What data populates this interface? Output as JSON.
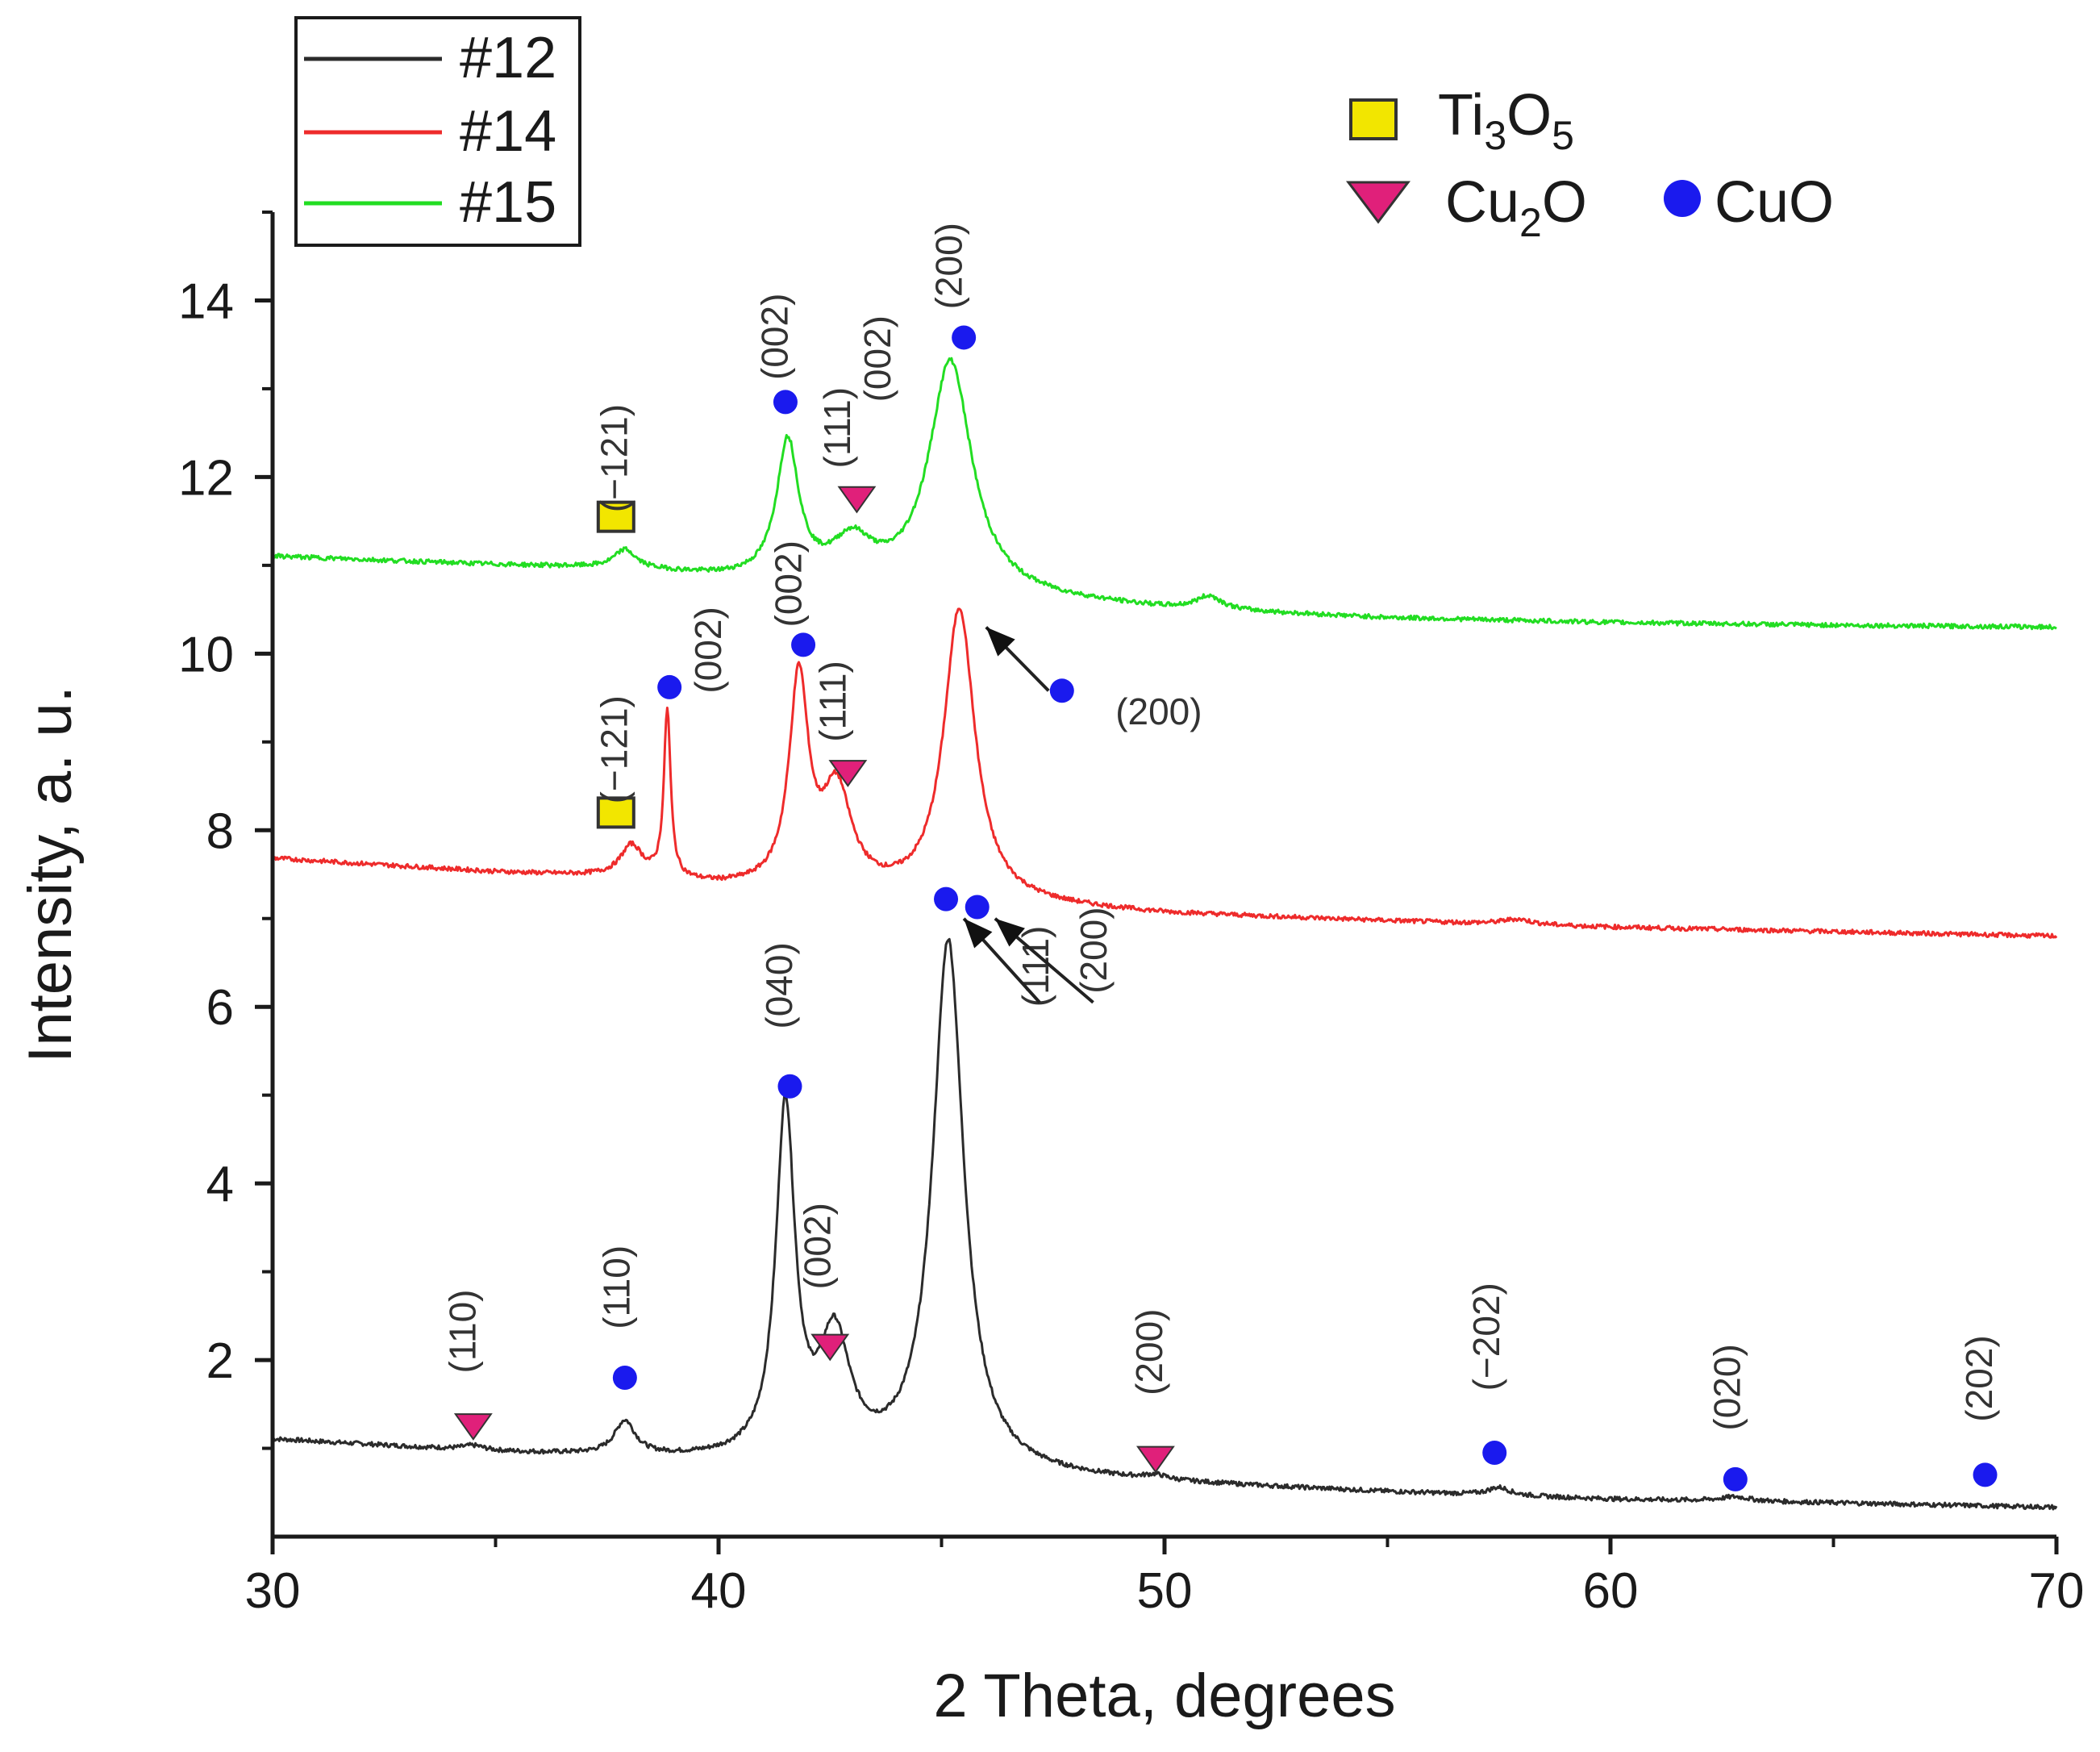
{
  "chart_data": {
    "type": "line",
    "xlabel": "2 Theta, degrees",
    "ylabel": "Intensity, a. u.",
    "xlim": [
      30,
      70
    ],
    "ylim": [
      0,
      15
    ],
    "x_ticks": [
      30,
      40,
      50,
      60,
      70
    ],
    "y_ticks": [
      2,
      4,
      6,
      8,
      10,
      12,
      14
    ],
    "legend": {
      "position": "top-left",
      "entries": [
        {
          "label": "#12",
          "color": "#2b2b2b"
        },
        {
          "label": "#14",
          "color": "#ee2b2b"
        },
        {
          "label": "#15",
          "color": "#22dd22"
        }
      ]
    },
    "phase_legend": [
      {
        "marker": "square",
        "color": "#f2e600",
        "label": "Ti",
        "sub1": "3",
        "mid": "O",
        "sub2": "5"
      },
      {
        "marker": "triangle",
        "color": "#e0207a",
        "label": "Cu",
        "sub1": "2",
        "mid": "O",
        "sub2": ""
      },
      {
        "marker": "circle",
        "color": "#1a1aee",
        "label": "CuO",
        "sub1": "",
        "mid": "",
        "sub2": ""
      }
    ],
    "series": [
      {
        "name": "#12",
        "color": "#2b2b2b",
        "baseline": [
          [
            30,
            1.1
          ],
          [
            35,
            0.95
          ],
          [
            40,
            0.85
          ],
          [
            45,
            0.72
          ],
          [
            50,
            0.6
          ],
          [
            55,
            0.5
          ],
          [
            60,
            0.42
          ],
          [
            65,
            0.38
          ],
          [
            70,
            0.33
          ]
        ],
        "peaks": [
          {
            "x": 34.5,
            "h": 0.05,
            "w": 0.3
          },
          {
            "x": 37.9,
            "h": 0.38,
            "w": 0.28
          },
          {
            "x": 41.5,
            "h": 3.95,
            "w": 0.26
          },
          {
            "x": 42.6,
            "h": 1.35,
            "w": 0.42
          },
          {
            "x": 45.15,
            "h": 6.0,
            "w": 0.42
          },
          {
            "x": 49.8,
            "h": 0.05,
            "w": 0.3
          },
          {
            "x": 57.5,
            "h": 0.09,
            "w": 0.3
          },
          {
            "x": 62.8,
            "h": 0.05,
            "w": 0.4
          }
        ]
      },
      {
        "name": "#14",
        "color": "#ee2b2b",
        "baseline": [
          [
            30,
            7.68
          ],
          [
            35,
            7.52
          ],
          [
            38,
            7.45
          ],
          [
            40,
            7.35
          ],
          [
            45,
            7.2
          ],
          [
            50,
            7.05
          ],
          [
            55,
            6.97
          ],
          [
            60,
            6.9
          ],
          [
            65,
            6.85
          ],
          [
            70,
            6.8
          ]
        ],
        "peaks": [
          {
            "x": 38.05,
            "h": 0.35,
            "w": 0.3
          },
          {
            "x": 38.85,
            "h": 1.9,
            "w": 0.09
          },
          {
            "x": 41.8,
            "h": 2.35,
            "w": 0.26
          },
          {
            "x": 42.65,
            "h": 1.1,
            "w": 0.4
          },
          {
            "x": 45.4,
            "h": 3.3,
            "w": 0.42
          },
          {
            "x": 57.9,
            "h": 0.06,
            "w": 0.4
          }
        ]
      },
      {
        "name": "#15",
        "color": "#22dd22",
        "baseline": [
          [
            30,
            11.1
          ],
          [
            35,
            11.0
          ],
          [
            38,
            10.95
          ],
          [
            40,
            10.85
          ],
          [
            45,
            10.68
          ],
          [
            50,
            10.5
          ],
          [
            55,
            10.4
          ],
          [
            60,
            10.35
          ],
          [
            65,
            10.32
          ],
          [
            70,
            10.3
          ]
        ],
        "peaks": [
          {
            "x": 37.9,
            "h": 0.2,
            "w": 0.28
          },
          {
            "x": 41.55,
            "h": 1.55,
            "w": 0.3
          },
          {
            "x": 43.0,
            "h": 0.45,
            "w": 0.55
          },
          {
            "x": 45.2,
            "h": 2.62,
            "w": 0.58
          },
          {
            "x": 51.0,
            "h": 0.15,
            "w": 0.35
          }
        ]
      }
    ],
    "markers": [
      {
        "type": "square",
        "x": 37.7,
        "y": 11.55
      },
      {
        "type": "circle",
        "x": 41.5,
        "y": 12.85
      },
      {
        "type": "triangle",
        "x": 43.1,
        "y": 11.75
      },
      {
        "type": "circle",
        "x": 45.5,
        "y": 13.58
      },
      {
        "type": "square",
        "x": 37.7,
        "y": 8.2
      },
      {
        "type": "circle",
        "x": 38.9,
        "y": 9.62
      },
      {
        "type": "circle",
        "x": 41.9,
        "y": 10.1
      },
      {
        "type": "triangle",
        "x": 42.9,
        "y": 8.65
      },
      {
        "type": "circle",
        "x": 47.7,
        "y": 9.58
      },
      {
        "type": "circle",
        "x": 45.1,
        "y": 7.22
      },
      {
        "type": "circle",
        "x": 45.8,
        "y": 7.13
      },
      {
        "type": "triangle",
        "x": 34.5,
        "y": 1.25
      },
      {
        "type": "circle",
        "x": 37.9,
        "y": 1.8
      },
      {
        "type": "circle",
        "x": 41.6,
        "y": 5.1
      },
      {
        "type": "triangle",
        "x": 42.5,
        "y": 2.15
      },
      {
        "type": "triangle",
        "x": 49.8,
        "y": 0.88
      },
      {
        "type": "circle",
        "x": 57.4,
        "y": 0.95
      },
      {
        "type": "circle",
        "x": 62.8,
        "y": 0.65
      },
      {
        "type": "circle",
        "x": 68.4,
        "y": 0.7
      }
    ],
    "annotations": [
      {
        "text": "(−121)",
        "x": 37.95,
        "y": 11.6,
        "rotate": -90
      },
      {
        "text": "(002)",
        "x": 41.55,
        "y": 13.1,
        "rotate": -90
      },
      {
        "text": "(111)",
        "x": 42.95,
        "y": 12.1,
        "rotate": -90
      },
      {
        "text": "(002)",
        "x": 43.85,
        "y": 12.85,
        "rotate": -90
      },
      {
        "text": "(200)",
        "x": 45.45,
        "y": 13.9,
        "rotate": -90
      },
      {
        "text": "(−121)",
        "x": 37.95,
        "y": 8.3,
        "rotate": -90
      },
      {
        "text": "(002)",
        "x": 40.05,
        "y": 9.55,
        "rotate": -90
      },
      {
        "text": "(002)",
        "x": 41.85,
        "y": 10.3,
        "rotate": -90
      },
      {
        "text": "(111)",
        "x": 42.85,
        "y": 9.0,
        "rotate": -90
      },
      {
        "text": "(200)",
        "x": 48.9,
        "y": 9.2,
        "rotate": 0
      },
      {
        "text": "(111)",
        "x": 47.4,
        "y": 6.0,
        "rotate": -90
      },
      {
        "text": "(200)",
        "x": 48.7,
        "y": 6.15,
        "rotate": -90
      },
      {
        "text": "(110)",
        "x": 34.55,
        "y": 1.85,
        "rotate": -90
      },
      {
        "text": "(110)",
        "x": 38.0,
        "y": 2.35,
        "rotate": -90
      },
      {
        "text": "(040)",
        "x": 41.65,
        "y": 5.75,
        "rotate": -90
      },
      {
        "text": "(002)",
        "x": 42.5,
        "y": 2.8,
        "rotate": -90
      },
      {
        "text": "(200)",
        "x": 49.95,
        "y": 1.6,
        "rotate": -90
      },
      {
        "text": "(−202)",
        "x": 57.5,
        "y": 1.65,
        "rotate": -90
      },
      {
        "text": "(020)",
        "x": 62.9,
        "y": 1.2,
        "rotate": -90
      },
      {
        "text": "(202)",
        "x": 68.55,
        "y": 1.3,
        "rotate": -90
      }
    ],
    "arrows": [
      {
        "from": [
          47.4,
          9.58
        ],
        "to": [
          46.0,
          10.3
        ]
      },
      {
        "from": [
          47.2,
          6.05
        ],
        "to": [
          45.5,
          7.0
        ]
      },
      {
        "from": [
          48.4,
          6.05
        ],
        "to": [
          46.2,
          7.0
        ]
      }
    ]
  }
}
